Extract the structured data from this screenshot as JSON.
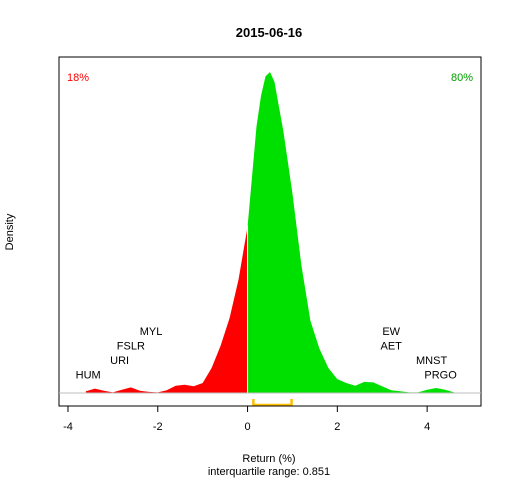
{
  "chart_data": {
    "type": "area",
    "title": "2015-06-16",
    "xlabel": "Return (%)",
    "subtitle": "interquartile range: 0.851",
    "ylabel": "Density",
    "xlim": [
      -4.2,
      5.2
    ],
    "ylim": [
      0,
      0.64
    ],
    "x_ticks": [
      -4,
      -2,
      0,
      2,
      4
    ],
    "x_tick_labels": [
      "-4",
      "-2",
      "0",
      "2",
      "4"
    ],
    "split_at": 0,
    "negative_color": "#ff0000",
    "positive_color": "#00e000",
    "baseline_color": "#bebebe",
    "density": {
      "x": [
        -3.6,
        -3.4,
        -3.2,
        -3.0,
        -2.8,
        -2.6,
        -2.4,
        -2.2,
        -2.0,
        -1.8,
        -1.6,
        -1.4,
        -1.2,
        -1.0,
        -0.8,
        -0.6,
        -0.4,
        -0.2,
        0.0,
        0.2,
        0.3,
        0.4,
        0.5,
        0.6,
        0.8,
        1.0,
        1.2,
        1.4,
        1.6,
        1.8,
        2.0,
        2.2,
        2.4,
        2.6,
        2.8,
        3.0,
        3.2,
        3.4,
        3.6,
        3.8,
        4.0,
        4.2,
        4.4,
        4.6
      ],
      "y": [
        0.003,
        0.008,
        0.004,
        0.001,
        0.006,
        0.01,
        0.004,
        0.002,
        0.001,
        0.005,
        0.013,
        0.015,
        0.012,
        0.018,
        0.045,
        0.085,
        0.135,
        0.205,
        0.3,
        0.48,
        0.535,
        0.57,
        0.578,
        0.56,
        0.47,
        0.36,
        0.23,
        0.13,
        0.08,
        0.045,
        0.025,
        0.018,
        0.013,
        0.02,
        0.019,
        0.012,
        0.005,
        0.003,
        0.001,
        0.001,
        0.006,
        0.009,
        0.006,
        0.001
      ]
    },
    "annotations": [
      {
        "text": "18%",
        "position": "top-left",
        "color": "#ff0000"
      },
      {
        "text": "80%",
        "position": "top-right",
        "color": "#00a000"
      }
    ],
    "labels": [
      {
        "text": "HUM",
        "x": -3.55,
        "y": 0.026
      },
      {
        "text": "URI",
        "x": -2.85,
        "y": 0.052
      },
      {
        "text": "FSLR",
        "x": -2.6,
        "y": 0.078
      },
      {
        "text": "MYL",
        "x": -2.15,
        "y": 0.104
      },
      {
        "text": "AET",
        "x": 3.2,
        "y": 0.078
      },
      {
        "text": "EW",
        "x": 3.2,
        "y": 0.104
      },
      {
        "text": "PRGO",
        "x": 4.3,
        "y": 0.026
      },
      {
        "text": "MNST",
        "x": 4.1,
        "y": 0.052
      }
    ],
    "iqr_bracket": {
      "from": 0.13,
      "to": 0.98,
      "color": "#ffc000"
    }
  }
}
